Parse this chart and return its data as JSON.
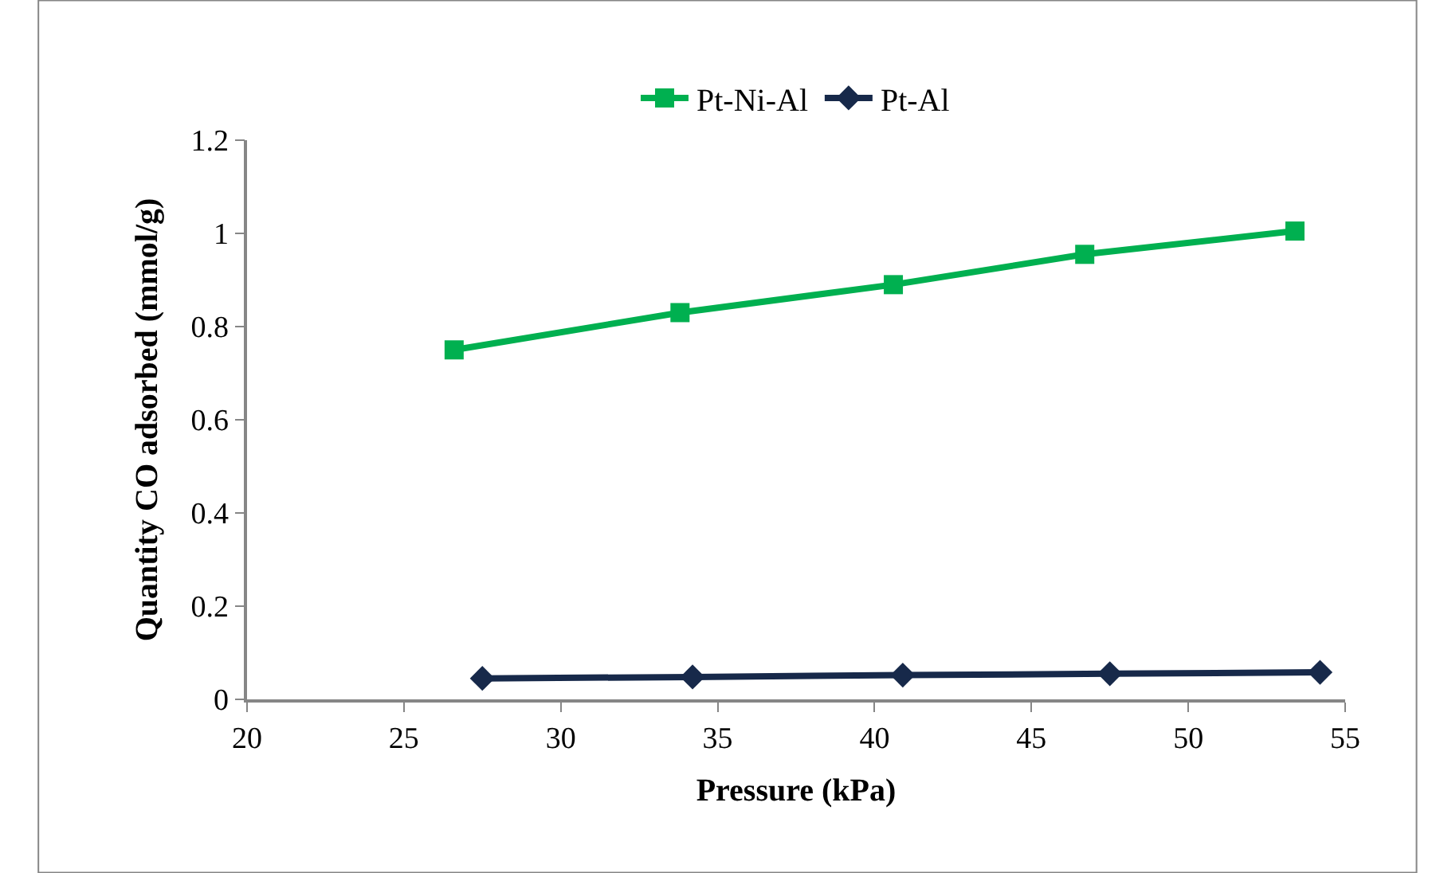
{
  "chart_data": {
    "type": "line",
    "xlabel": "Pressure (kPa)",
    "ylabel": "Quantity CO adsorbed (mmol/g)",
    "xlim": [
      20,
      55
    ],
    "xticks": [
      20,
      25,
      30,
      35,
      40,
      45,
      50,
      55
    ],
    "ylim": [
      0,
      1.2
    ],
    "yticks": [
      0,
      0.2,
      0.4,
      0.6,
      0.8,
      1,
      1.2
    ],
    "legend": "top",
    "series": [
      {
        "name": "Pt-Ni-Al",
        "color": "#00b050",
        "marker": "square",
        "x": [
          26.6,
          33.8,
          40.6,
          46.7,
          53.4
        ],
        "values": [
          0.75,
          0.83,
          0.89,
          0.955,
          1.005
        ]
      },
      {
        "name": "Pt-Al",
        "color": "#17294a",
        "marker": "diamond",
        "x": [
          27.5,
          34.2,
          40.9,
          47.5,
          54.2
        ],
        "values": [
          0.045,
          0.048,
          0.052,
          0.055,
          0.058
        ]
      }
    ]
  }
}
